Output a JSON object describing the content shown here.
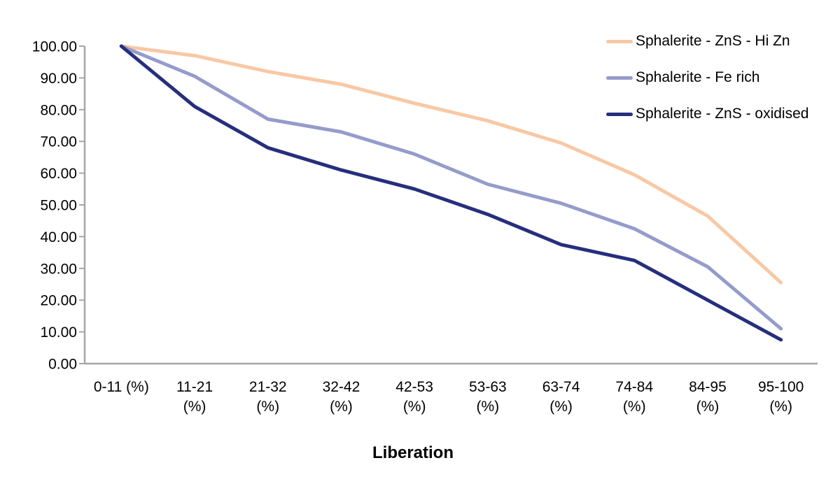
{
  "chart_data": {
    "type": "line",
    "title": "",
    "xlabel": "Liberation",
    "ylabel": "",
    "categories": [
      "0-11 (%)",
      "11-21 (%)",
      "21-32 (%)",
      "32-42 (%)",
      "42-53 (%)",
      "53-63 (%)",
      "63-74 (%)",
      "74-84 (%)",
      "84-95 (%)",
      "95-100 (%)"
    ],
    "series": [
      {
        "name": "Sphalerite - ZnS - Hi Zn",
        "color": "#F8C8A4",
        "values": [
          100,
          97,
          92,
          88,
          82,
          76.5,
          69.5,
          59.5,
          46.5,
          25.5
        ]
      },
      {
        "name": "Sphalerite - Fe rich",
        "color": "#959CCB",
        "values": [
          100,
          90.5,
          77,
          73,
          66,
          56.5,
          50.5,
          42.5,
          30.5,
          11
        ]
      },
      {
        "name": "Sphalerite - ZnS - oxidised",
        "color": "#262F7C",
        "values": [
          100,
          81,
          68,
          61,
          55,
          47,
          37.5,
          32.5,
          20,
          7.5
        ]
      }
    ],
    "ylim": [
      0,
      100
    ],
    "y_tick_labels": [
      "100.00",
      "90.00",
      "80.00",
      "70.00",
      "60.00",
      "50.00",
      "40.00",
      "30.00",
      "20.00",
      "10.00",
      "0.00"
    ],
    "grid": false,
    "legend_position": "top-right",
    "axis_color": "#A6A6A6",
    "text_color": "#000000"
  }
}
